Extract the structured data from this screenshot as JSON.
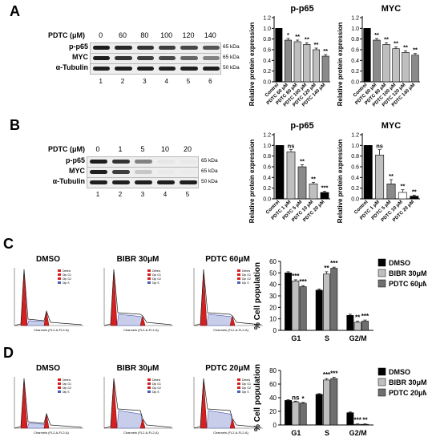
{
  "panels": {
    "A": {
      "letter": "A",
      "conc_label": "PDTC (μM)",
      "concentrations": [
        "0",
        "60",
        "80",
        "100",
        "120",
        "140"
      ],
      "lanes": [
        "1",
        "2",
        "3",
        "4",
        "5",
        "6"
      ],
      "rows": [
        {
          "name": "p-p65",
          "kda": "65 kDa",
          "intensity": [
            1.0,
            0.95,
            0.9,
            0.85,
            0.8,
            0.75
          ]
        },
        {
          "name": "MYC",
          "kda": "65 kDa",
          "intensity": [
            1.0,
            0.9,
            0.85,
            0.8,
            0.7,
            0.6
          ]
        },
        {
          "name": "α-Tubulin",
          "kda": "50 kDa",
          "intensity": [
            1,
            1,
            1,
            1,
            1,
            1
          ]
        }
      ]
    },
    "B": {
      "letter": "B",
      "conc_label": "PDTC (μM)",
      "concentrations": [
        "0",
        "1",
        "5",
        "10",
        "20"
      ],
      "lanes": [
        "1",
        "2",
        "3",
        "4",
        "5"
      ],
      "rows": [
        {
          "name": "p-p65",
          "kda": "65 kDa",
          "intensity": [
            1.0,
            0.9,
            0.6,
            0.08,
            0.05
          ]
        },
        {
          "name": "MYC",
          "kda": "65 kDa",
          "intensity": [
            1.0,
            0.85,
            0.3,
            0.05,
            0.03
          ]
        },
        {
          "name": "α-Tubulin",
          "kda": "50 kDa",
          "intensity": [
            1,
            1,
            1,
            1,
            1
          ]
        }
      ]
    },
    "C": {
      "letter": "C",
      "flow_titles": [
        "DMSO",
        "BIBR 30μM",
        "PDTC 60μM"
      ],
      "flow_legend": [
        "Debris",
        "Dip G1",
        "Dip G2",
        "Dip S"
      ],
      "flow_xlabel": "Channels (FL2-A-FL2-A)"
    },
    "D": {
      "letter": "D",
      "flow_titles": [
        "DMSO",
        "BIBR 30μM",
        "PDTC 20μM"
      ],
      "flow_legend": [
        "Debris",
        "Dip G1",
        "Dip G2",
        "Dip S"
      ],
      "flow_xlabel": "Channels (FL2-A-FL2-A)"
    }
  },
  "colors": {
    "black": "#000000",
    "gray": "#bfbfbf",
    "dark_gray": "#6f6f6f",
    "red": "#d42020",
    "blue_hatch": "#4a5fb4"
  },
  "chart_data": [
    {
      "id": "A-pp65",
      "type": "bar",
      "title": "p-p65",
      "ylabel": "Relative protein expression",
      "ylim": [
        0,
        1.2
      ],
      "yticks": [
        "0.0",
        "0.2",
        "0.4",
        "0.6",
        "0.8",
        "1.0",
        "1.2"
      ],
      "categories": [
        "Control",
        "PDTC 60 μM",
        "PDTC 80 μM",
        "PDTC 100 μM",
        "PDTC 120 μM",
        "PDTC 140 μM"
      ],
      "values": [
        1.0,
        0.78,
        0.75,
        0.7,
        0.6,
        0.48
      ],
      "errors": [
        0,
        0.03,
        0.03,
        0.03,
        0.03,
        0.03
      ],
      "sig": [
        "",
        "*",
        "**",
        "**",
        "**",
        "**"
      ],
      "fills": [
        "#000000",
        "#8a8a8a",
        "#bfbfbf",
        "#bfbfbf",
        "#bfbfbf",
        "#8a8a8a"
      ]
    },
    {
      "id": "A-myc",
      "type": "bar",
      "title": "MYC",
      "ylabel": "Relative protein expression",
      "ylim": [
        0,
        1.2
      ],
      "yticks": [
        "0.0",
        "0.2",
        "0.4",
        "0.6",
        "0.8",
        "1.0",
        "1.2"
      ],
      "categories": [
        "Control",
        "PDTC 60 μM",
        "PDTC 80 μM",
        "PDTC 100 μM",
        "PDTC 120 μM",
        "PDTC 140 μM"
      ],
      "values": [
        1.0,
        0.78,
        0.7,
        0.62,
        0.55,
        0.5
      ],
      "errors": [
        0,
        0.03,
        0.03,
        0.03,
        0.03,
        0.03
      ],
      "sig": [
        "",
        "**",
        "**",
        "**",
        "**",
        "**"
      ],
      "fills": [
        "#000000",
        "#8a8a8a",
        "#bfbfbf",
        "#bfbfbf",
        "#bfbfbf",
        "#8a8a8a"
      ]
    },
    {
      "id": "B-pp65",
      "type": "bar",
      "title": "p-p65",
      "ylabel": "Relative protein expression",
      "ylim": [
        0,
        1.2
      ],
      "yticks": [
        "0.0",
        "0.2",
        "0.4",
        "0.6",
        "0.8",
        "1.0",
        "1.2"
      ],
      "categories": [
        "Control",
        "PDTC 1 μM",
        "PDTC 5 μM",
        "PDTC 10 μM",
        "PDTC 20 μM"
      ],
      "values": [
        1.0,
        0.88,
        0.6,
        0.28,
        0.12
      ],
      "errors": [
        0,
        0.04,
        0.04,
        0.03,
        0.02
      ],
      "sig": [
        "",
        "ns",
        "**",
        "**",
        "***"
      ],
      "fills": [
        "#000000",
        "#bfbfbf",
        "#8a8a8a",
        "#bfbfbf",
        "#000000"
      ]
    },
    {
      "id": "B-myc",
      "type": "bar",
      "title": "MYC",
      "ylabel": "Relative protein expression",
      "ylim": [
        0,
        1.2
      ],
      "yticks": [
        "0.0",
        "0.2",
        "0.4",
        "0.6",
        "0.8",
        "1.0",
        "1.2"
      ],
      "categories": [
        "Control",
        "PDTC 1 μM",
        "PDTC 5 μM",
        "PDTC 10 μM",
        "PDTC 20 μM"
      ],
      "values": [
        1.0,
        0.82,
        0.28,
        0.12,
        0.05
      ],
      "errors": [
        0,
        0.1,
        0.08,
        0.05,
        0.02
      ],
      "sig": [
        "",
        "ns",
        "**",
        "**",
        "**"
      ],
      "fills": [
        "#000000",
        "#bfbfbf",
        "#8a8a8a",
        "#ffffff",
        "#000000"
      ]
    },
    {
      "id": "C-cycle",
      "type": "bar",
      "ylabel": "% Cell population",
      "ylim": [
        0,
        60
      ],
      "yticks": [
        "0",
        "10",
        "20",
        "30",
        "40",
        "50",
        "60"
      ],
      "categories": [
        "G1",
        "S",
        "G2/M"
      ],
      "series": [
        {
          "name": "DMSO",
          "values": [
            50,
            35,
            13
          ],
          "errors": [
            1,
            1,
            1
          ],
          "fill": "#000000",
          "sig": [
            "",
            "",
            ""
          ]
        },
        {
          "name": "BIBR 30μM",
          "values": [
            43,
            49,
            7
          ],
          "errors": [
            1,
            2,
            1
          ],
          "fill": "#bfbfbf",
          "sig": [
            "***",
            "**",
            "**"
          ]
        },
        {
          "name": "PDTC 60μM",
          "values": [
            38,
            54,
            8
          ],
          "errors": [
            1,
            1,
            1
          ],
          "fill": "#6f6f6f",
          "sig": [
            "***",
            "***",
            "***"
          ]
        }
      ]
    },
    {
      "id": "D-cycle",
      "type": "bar",
      "ylabel": "% Cell population",
      "ylim": [
        0,
        80
      ],
      "yticks": [
        "0",
        "20",
        "40",
        "60",
        "80"
      ],
      "categories": [
        "G1",
        "S",
        "G2/M"
      ],
      "series": [
        {
          "name": "DMSO",
          "values": [
            36,
            45,
            18
          ],
          "errors": [
            1,
            1,
            1
          ],
          "fill": "#000000",
          "sig": [
            "",
            "",
            ""
          ]
        },
        {
          "name": "BIBR 30μM",
          "values": [
            34,
            66,
            1
          ],
          "errors": [
            1,
            2,
            0.5
          ],
          "fill": "#bfbfbf",
          "sig": [
            "ns",
            "***",
            "***"
          ]
        },
        {
          "name": "PDTC 20μM",
          "values": [
            32,
            68,
            1
          ],
          "errors": [
            1,
            2,
            0.5
          ],
          "fill": "#6f6f6f",
          "sig": [
            "*",
            "***",
            "**"
          ]
        }
      ]
    }
  ]
}
